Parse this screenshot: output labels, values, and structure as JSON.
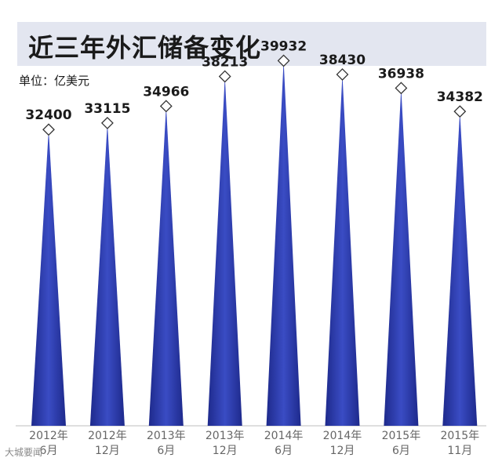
{
  "chart_data": {
    "type": "bar",
    "title": "近三年外汇储备变化",
    "unit_label": "单位：亿美元",
    "categories": [
      {
        "year": "2012年",
        "month": "6月"
      },
      {
        "year": "2012年",
        "month": "12月"
      },
      {
        "year": "2013年",
        "month": "6月"
      },
      {
        "year": "2013年",
        "month": "12月"
      },
      {
        "year": "2014年",
        "month": "6月"
      },
      {
        "year": "2014年",
        "month": "12月"
      },
      {
        "year": "2015年",
        "month": "6月"
      },
      {
        "year": "2015年",
        "month": "11月"
      }
    ],
    "values": [
      32400,
      33115,
      34966,
      38213,
      39932,
      38430,
      36938,
      34382
    ],
    "data_labels": [
      "32400",
      "33115",
      "34966",
      "38213",
      "39932",
      "38430",
      "36938",
      "34382"
    ],
    "ylim": [
      0,
      44000
    ],
    "grid": false,
    "legend": "none",
    "bar_color": "#1e2a8c",
    "bar_highlight": "#3a4cc4",
    "marker_color": "#ffffff",
    "marker_stroke": "#333333"
  },
  "watermark": "大城要闻"
}
